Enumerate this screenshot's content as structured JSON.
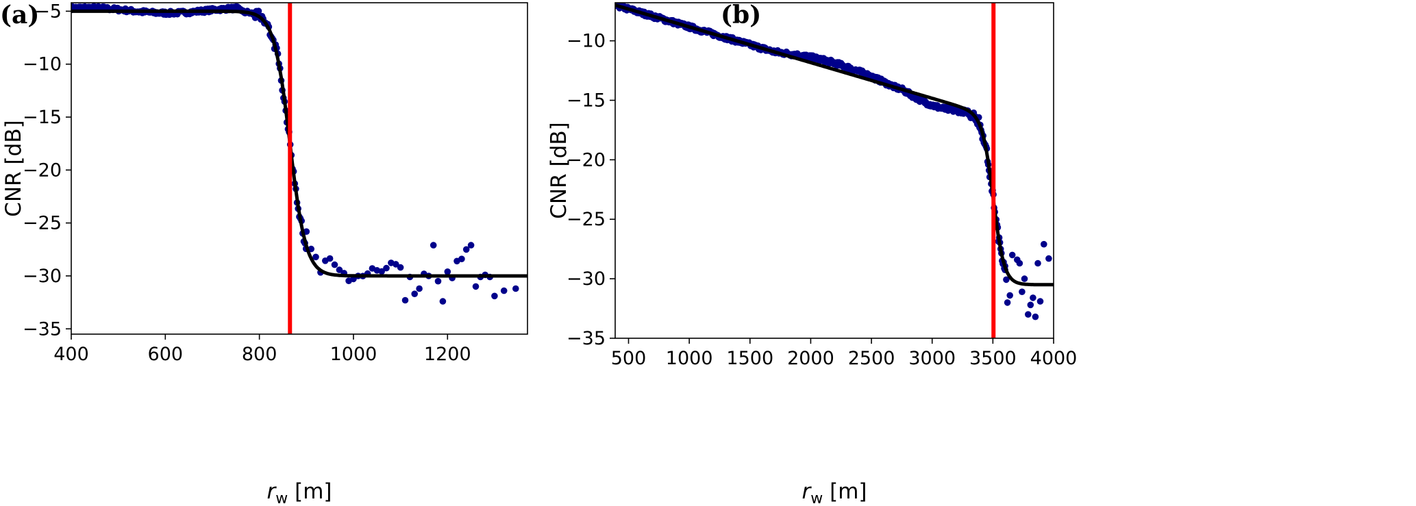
{
  "chart_data": [
    {
      "type": "scatter",
      "panel_label": "(a)",
      "xlabel_symbol": "r",
      "xlabel_subscript": "w",
      "xlabel_unit": " [m]",
      "ylabel": "CNR [dB]",
      "xlim": [
        400,
        1370
      ],
      "ylim": [
        -35.5,
        -4.2
      ],
      "xticks": [
        400,
        600,
        800,
        1000,
        1200
      ],
      "yticks": [
        -5,
        -10,
        -15,
        -20,
        -25,
        -30,
        -35
      ],
      "grid": false,
      "colors": {
        "points": "#00008b",
        "fit": "#000000",
        "vline": "#ff0000"
      },
      "vertical_line_x": 865,
      "fit_model": {
        "shape": "sigmoid",
        "upper": -5.0,
        "lower": -30.0,
        "center": 865,
        "width": 17,
        "x_range": [
          400,
          1370
        ]
      },
      "series": [
        {
          "points": [
            [
              1100,
              -29.2
            ],
            [
              1110,
              -32.3
            ],
            [
              1120,
              -30.1
            ],
            [
              1130,
              -31.7
            ],
            [
              1140,
              -31.2
            ],
            [
              1150,
              -29.8
            ],
            [
              1160,
              -30.0
            ],
            [
              1170,
              -27.1
            ],
            [
              1180,
              -30.5
            ],
            [
              1190,
              -32.4
            ],
            [
              1200,
              -29.6
            ],
            [
              1210,
              -30.2
            ],
            [
              1220,
              -28.6
            ],
            [
              1230,
              -28.4
            ],
            [
              1240,
              -27.5
            ],
            [
              1250,
              -27.1
            ],
            [
              1260,
              -31.0
            ],
            [
              1270,
              -30.1
            ],
            [
              1280,
              -29.9
            ],
            [
              1290,
              -30.1
            ],
            [
              1300,
              -31.9
            ],
            [
              1320,
              -31.4
            ],
            [
              1345,
              -31.2
            ]
          ]
        }
      ]
    },
    {
      "type": "scatter",
      "panel_label": "(b)",
      "xlabel_symbol": "r",
      "xlabel_subscript": "w",
      "xlabel_unit": " [m]",
      "ylabel": "CNR [dB]",
      "xlim": [
        390,
        4000
      ],
      "ylim": [
        -35,
        -6.8
      ],
      "xticks": [
        500,
        1000,
        1500,
        2000,
        2500,
        3000,
        3500,
        4000
      ],
      "yticks": [
        -10,
        -15,
        -20,
        -25,
        -30,
        -35
      ],
      "grid": false,
      "colors": {
        "points": "#00008b",
        "fit": "#000000",
        "vline": "#ff0000"
      },
      "vertical_line_x": 3505,
      "fit_model": {
        "shape": "linear-plus-sigmoid",
        "intercept_at_390": -7.0,
        "slope_per_m": -0.003,
        "lower": -30.5,
        "center": 3505,
        "width": 45,
        "x_range": [
          390,
          4000
        ]
      },
      "series": [
        {
          "points": [
            [
              3620,
              -32.0
            ],
            [
              3640,
              -31.4
            ],
            [
              3660,
              -28.0
            ],
            [
              3700,
              -28.4
            ],
            [
              3720,
              -28.7
            ],
            [
              3740,
              -31.1
            ],
            [
              3760,
              -30.0
            ],
            [
              3790,
              -33.0
            ],
            [
              3810,
              -32.2
            ],
            [
              3830,
              -31.6
            ],
            [
              3850,
              -33.2
            ],
            [
              3870,
              -28.7
            ],
            [
              3890,
              -31.9
            ],
            [
              3920,
              -27.1
            ],
            [
              3960,
              -28.3
            ]
          ]
        }
      ]
    }
  ]
}
